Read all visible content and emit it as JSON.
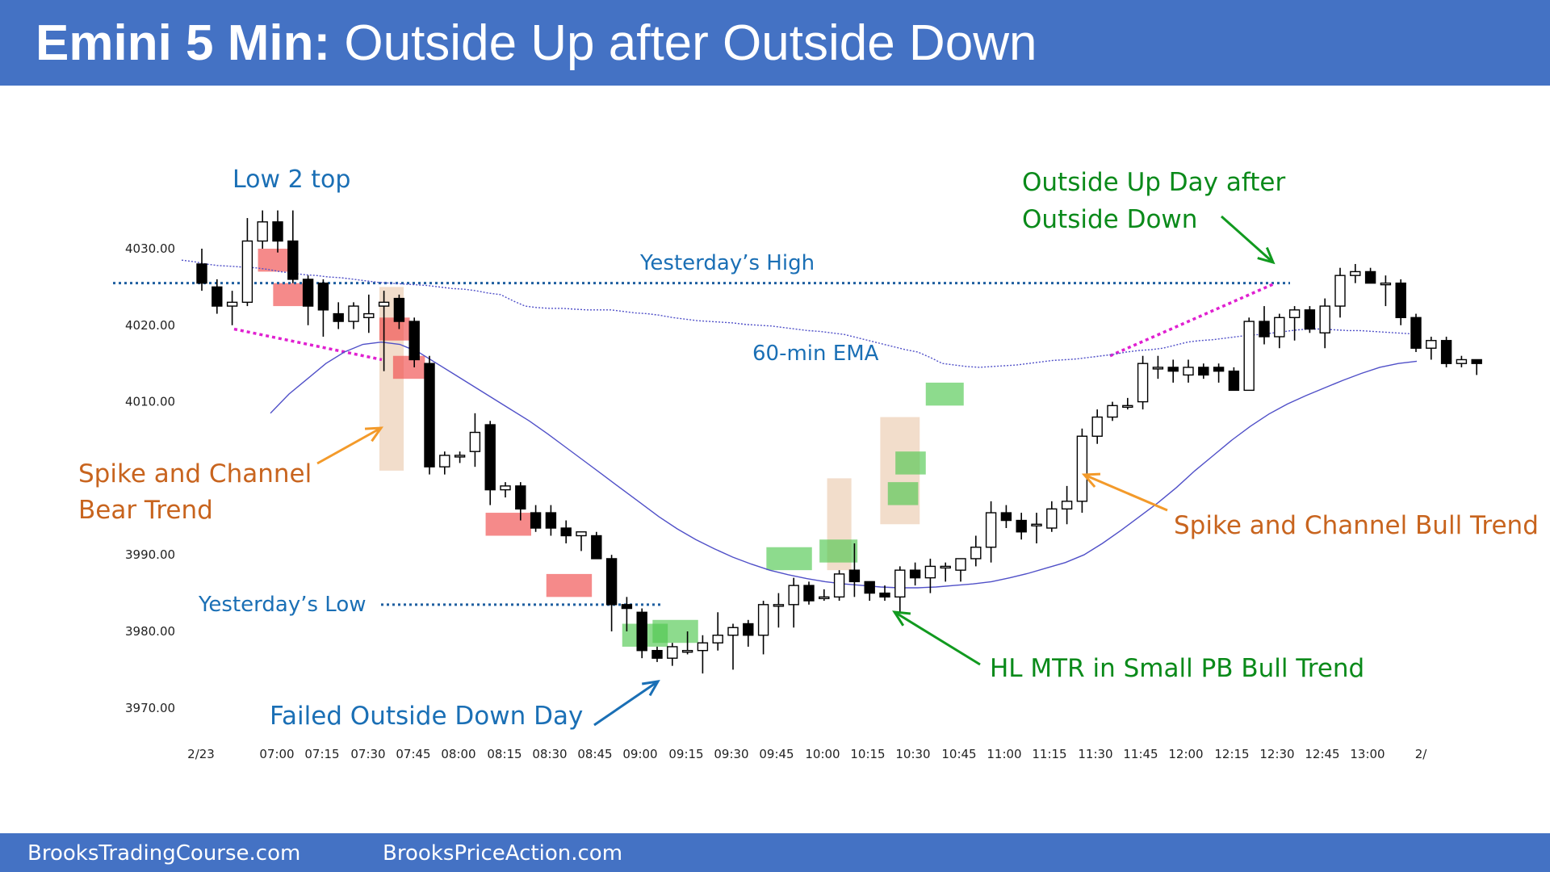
{
  "header": {
    "title_bold": "Emini 5 Min:",
    "title_rest": "Outside Up after Outside Down"
  },
  "footer": {
    "left": "BrooksTradingCourse.com",
    "right": "BrooksPriceAction.com"
  },
  "colors": {
    "header_bg": "#4472c4",
    "blue_text": "#1a6fb5",
    "green_text": "#0a8a1a",
    "orange_text": "#c8641e",
    "magenta": "#e020d0",
    "ema": "#5050c8",
    "bear_box": "#f04c4c",
    "bull_box": "#50c850",
    "tan_box": "#e2b48c"
  },
  "chart_data": {
    "type": "candlestick",
    "title": "",
    "y_ticks": [
      "4030.00",
      "4020.00",
      "4010.00",
      "3990.00",
      "3980.00",
      "3970.00"
    ],
    "ylim": [
      3965,
      4035
    ],
    "x_ticks": [
      "2/23",
      "07:00",
      "07:15",
      "07:30",
      "07:45",
      "08:00",
      "08:15",
      "08:30",
      "08:45",
      "09:00",
      "09:15",
      "09:30",
      "09:45",
      "10:00",
      "10:15",
      "10:30",
      "10:45",
      "11:00",
      "11:15",
      "11:30",
      "11:45",
      "12:00",
      "12:15",
      "12:30",
      "12:45",
      "13:00",
      "2/"
    ],
    "candles": [
      {
        "o": 4028.0,
        "h": 4030.0,
        "l": 4024.5,
        "c": 4025.5
      },
      {
        "o": 4025.0,
        "h": 4026.0,
        "l": 4021.5,
        "c": 4022.5
      },
      {
        "o": 4022.5,
        "h": 4024.5,
        "l": 4020.0,
        "c": 4023.0
      },
      {
        "o": 4023.0,
        "h": 4034.0,
        "l": 4022.5,
        "c": 4031.0
      },
      {
        "o": 4031.0,
        "h": 4035.0,
        "l": 4030.0,
        "c": 4033.5
      },
      {
        "o": 4033.5,
        "h": 4035.0,
        "l": 4029.5,
        "c": 4031.0
      },
      {
        "o": 4031.0,
        "h": 4035.0,
        "l": 4025.5,
        "c": 4026.0
      },
      {
        "o": 4026.0,
        "h": 4026.5,
        "l": 4020.0,
        "c": 4022.5
      },
      {
        "o": 4025.5,
        "h": 4026.0,
        "l": 4018.5,
        "c": 4022.0
      },
      {
        "o": 4021.5,
        "h": 4023.0,
        "l": 4019.5,
        "c": 4020.5
      },
      {
        "o": 4020.5,
        "h": 4023.0,
        "l": 4019.5,
        "c": 4022.5
      },
      {
        "o": 4021.0,
        "h": 4024.0,
        "l": 4019.0,
        "c": 4021.5
      },
      {
        "o": 4022.5,
        "h": 4024.5,
        "l": 4014.0,
        "c": 4023.0
      },
      {
        "o": 4023.5,
        "h": 4024.0,
        "l": 4019.5,
        "c": 4020.5
      },
      {
        "o": 4020.5,
        "h": 4021.0,
        "l": 4014.5,
        "c": 4015.5
      },
      {
        "o": 4015.0,
        "h": 4016.0,
        "l": 4000.5,
        "c": 4001.5
      },
      {
        "o": 4001.5,
        "h": 4003.5,
        "l": 4000.5,
        "c": 4003.0
      },
      {
        "o": 4003.0,
        "h": 4003.5,
        "l": 4002.0,
        "c": 4003.0
      },
      {
        "o": 4003.5,
        "h": 4008.5,
        "l": 4001.5,
        "c": 4006.0
      },
      {
        "o": 4007.0,
        "h": 4007.5,
        "l": 3996.5,
        "c": 3998.5
      },
      {
        "o": 3998.5,
        "h": 3999.5,
        "l": 3997.5,
        "c": 3999.0
      },
      {
        "o": 3999.0,
        "h": 3999.5,
        "l": 3994.5,
        "c": 3996.0
      },
      {
        "o": 3995.5,
        "h": 3996.5,
        "l": 3993.0,
        "c": 3993.5
      },
      {
        "o": 3995.5,
        "h": 3996.5,
        "l": 3992.5,
        "c": 3993.5
      },
      {
        "o": 3993.5,
        "h": 3994.5,
        "l": 3991.5,
        "c": 3992.5
      },
      {
        "o": 3992.5,
        "h": 3993.0,
        "l": 3990.5,
        "c": 3993.0
      },
      {
        "o": 3992.5,
        "h": 3993.0,
        "l": 3989.5,
        "c": 3989.5
      },
      {
        "o": 3989.5,
        "h": 3990.0,
        "l": 3980.0,
        "c": 3983.5
      },
      {
        "o": 3983.5,
        "h": 3984.5,
        "l": 3980.0,
        "c": 3983.0
      },
      {
        "o": 3982.5,
        "h": 3983.0,
        "l": 3976.5,
        "c": 3977.5
      },
      {
        "o": 3977.5,
        "h": 3978.0,
        "l": 3976.0,
        "c": 3976.5
      },
      {
        "o": 3976.5,
        "h": 3978.5,
        "l": 3975.5,
        "c": 3978.0
      },
      {
        "o": 3977.5,
        "h": 3980.0,
        "l": 3977.0,
        "c": 3977.5
      },
      {
        "o": 3977.5,
        "h": 3979.5,
        "l": 3974.5,
        "c": 3978.5
      },
      {
        "o": 3978.5,
        "h": 3982.5,
        "l": 3977.5,
        "c": 3979.5
      },
      {
        "o": 3979.5,
        "h": 3981.0,
        "l": 3975.0,
        "c": 3980.5
      },
      {
        "o": 3981.0,
        "h": 3981.5,
        "l": 3978.0,
        "c": 3979.5
      },
      {
        "o": 3979.5,
        "h": 3984.0,
        "l": 3977.0,
        "c": 3983.5
      },
      {
        "o": 3983.5,
        "h": 3985.0,
        "l": 3980.5,
        "c": 3983.5
      },
      {
        "o": 3983.5,
        "h": 3987.0,
        "l": 3980.5,
        "c": 3986.0
      },
      {
        "o": 3986.0,
        "h": 3986.5,
        "l": 3983.5,
        "c": 3984.0
      },
      {
        "o": 3984.5,
        "h": 3985.5,
        "l": 3984.0,
        "c": 3984.5
      },
      {
        "o": 3984.5,
        "h": 3988.0,
        "l": 3984.0,
        "c": 3987.5
      },
      {
        "o": 3988.0,
        "h": 3991.5,
        "l": 3984.5,
        "c": 3986.5
      },
      {
        "o": 3986.5,
        "h": 3986.5,
        "l": 3984.0,
        "c": 3985.0
      },
      {
        "o": 3985.0,
        "h": 3986.0,
        "l": 3984.0,
        "c": 3984.5
      },
      {
        "o": 3984.5,
        "h": 3988.5,
        "l": 3982.5,
        "c": 3988.0
      },
      {
        "o": 3988.0,
        "h": 3989.0,
        "l": 3986.0,
        "c": 3987.0
      },
      {
        "o": 3987.0,
        "h": 3989.5,
        "l": 3985.0,
        "c": 3988.5
      },
      {
        "o": 3988.5,
        "h": 3989.0,
        "l": 3986.5,
        "c": 3988.5
      },
      {
        "o": 3988.0,
        "h": 3989.5,
        "l": 3986.5,
        "c": 3989.5
      },
      {
        "o": 3989.5,
        "h": 3992.5,
        "l": 3988.5,
        "c": 3991.0
      },
      {
        "o": 3991.0,
        "h": 3997.0,
        "l": 3989.0,
        "c": 3995.5
      },
      {
        "o": 3995.5,
        "h": 3996.5,
        "l": 3993.5,
        "c": 3994.5
      },
      {
        "o": 3994.5,
        "h": 3995.5,
        "l": 3992.0,
        "c": 3993.0
      },
      {
        "o": 3994.0,
        "h": 3995.5,
        "l": 3991.5,
        "c": 3994.0
      },
      {
        "o": 3993.5,
        "h": 3997.0,
        "l": 3993.0,
        "c": 3996.0
      },
      {
        "o": 3996.0,
        "h": 3999.0,
        "l": 3994.0,
        "c": 3997.0
      },
      {
        "o": 3997.0,
        "h": 4006.5,
        "l": 3995.5,
        "c": 4005.5
      },
      {
        "o": 4005.5,
        "h": 4009.0,
        "l": 4004.5,
        "c": 4008.0
      },
      {
        "o": 4008.0,
        "h": 4010.0,
        "l": 4007.5,
        "c": 4009.5
      },
      {
        "o": 4009.5,
        "h": 4010.5,
        "l": 4009.0,
        "c": 4009.5
      },
      {
        "o": 4010.0,
        "h": 4016.0,
        "l": 4009.0,
        "c": 4015.0
      },
      {
        "o": 4014.5,
        "h": 4016.0,
        "l": 4013.0,
        "c": 4014.5
      },
      {
        "o": 4014.5,
        "h": 4015.5,
        "l": 4012.5,
        "c": 4014.0
      },
      {
        "o": 4013.5,
        "h": 4015.5,
        "l": 4012.5,
        "c": 4014.5
      },
      {
        "o": 4014.5,
        "h": 4015.0,
        "l": 4013.0,
        "c": 4013.5
      },
      {
        "o": 4014.5,
        "h": 4015.0,
        "l": 4012.5,
        "c": 4014.0
      },
      {
        "o": 4014.0,
        "h": 4014.5,
        "l": 4011.5,
        "c": 4011.5
      },
      {
        "o": 4011.5,
        "h": 4021.0,
        "l": 4011.5,
        "c": 4020.5
      },
      {
        "o": 4020.5,
        "h": 4022.5,
        "l": 4017.5,
        "c": 4018.5
      },
      {
        "o": 4018.5,
        "h": 4021.5,
        "l": 4017.0,
        "c": 4021.0
      },
      {
        "o": 4021.0,
        "h": 4022.5,
        "l": 4018.0,
        "c": 4022.0
      },
      {
        "o": 4022.0,
        "h": 4022.5,
        "l": 4019.0,
        "c": 4019.5
      },
      {
        "o": 4019.0,
        "h": 4023.5,
        "l": 4017.0,
        "c": 4022.5
      },
      {
        "o": 4022.5,
        "h": 4027.5,
        "l": 4021.0,
        "c": 4026.5
      },
      {
        "o": 4026.5,
        "h": 4028.0,
        "l": 4025.5,
        "c": 4027.0
      },
      {
        "o": 4027.0,
        "h": 4027.5,
        "l": 4025.5,
        "c": 4025.5
      },
      {
        "o": 4025.5,
        "h": 4026.5,
        "l": 4022.5,
        "c": 4025.5
      },
      {
        "o": 4025.5,
        "h": 4026.0,
        "l": 4020.0,
        "c": 4021.0
      },
      {
        "o": 4021.0,
        "h": 4021.5,
        "l": 4016.5,
        "c": 4017.0
      },
      {
        "o": 4017.0,
        "h": 4018.5,
        "l": 4015.5,
        "c": 4018.0
      },
      {
        "o": 4018.0,
        "h": 4018.5,
        "l": 4014.5,
        "c": 4015.0
      },
      {
        "o": 4015.0,
        "h": 4016.0,
        "l": 4014.5,
        "c": 4015.5
      },
      {
        "o": 4015.5,
        "h": 4015.5,
        "l": 4013.5,
        "c": 4015.0
      }
    ],
    "ema_60min": [
      4028.5,
      4028.3,
      4028.0,
      4027.8,
      4027.7,
      4027.6,
      4027.5,
      4027.3,
      4027.0,
      4026.8,
      4026.6,
      4026.5,
      4026.3,
      4026.2,
      4026.0,
      4025.8,
      4025.6,
      4025.5,
      4025.4,
      4025.3,
      4025.2,
      4025.0,
      4024.8,
      4024.7,
      4024.5,
      4024.2,
      4024.0,
      4023.2,
      4022.5,
      4022.3,
      4022.2,
      4022.2,
      4022.1,
      4022.0,
      4022.0,
      4022.0,
      4021.8,
      4021.6,
      4021.5,
      4021.3,
      4021.0,
      4020.8,
      4020.6,
      4020.5,
      4020.4,
      4020.3,
      4020.1,
      4020.0,
      4019.9,
      4019.7,
      4019.5,
      4019.3,
      4019.2,
      4019.0,
      4018.8,
      4018.4,
      4018.0,
      4017.6,
      4017.2,
      4016.8,
      4016.5,
      4015.8,
      4015.0,
      4014.8,
      4014.6,
      4014.5,
      4014.6,
      4014.7,
      4014.8,
      4015.0,
      4015.2,
      4015.4,
      4015.5,
      4015.6,
      4015.8,
      4016.0,
      4016.2,
      4016.5,
      4016.7,
      4016.8,
      4017.0,
      4017.4,
      4017.8,
      4018.0,
      4018.1,
      4018.3,
      4018.5,
      4018.7,
      4018.8,
      4019.0,
      4019.2,
      4019.4,
      4019.5,
      4019.5,
      4019.4,
      4019.3,
      4019.3,
      4019.2,
      4019.1,
      4019.0,
      4018.9,
      4018.8
    ],
    "ema_5min": [
      4008.5,
      4011.0,
      4013.0,
      4015.0,
      4016.5,
      4017.5,
      4017.8,
      4017.5,
      4016.5,
      4015.0,
      4013.5,
      4012.0,
      4010.5,
      4009.0,
      4007.5,
      4005.8,
      4004.0,
      4002.2,
      4000.4,
      3998.6,
      3996.8,
      3995.0,
      3993.4,
      3992.0,
      3990.8,
      3989.7,
      3988.8,
      3988.0,
      3987.4,
      3986.9,
      3986.5,
      3986.2,
      3986.0,
      3985.8,
      3985.7,
      3985.7,
      3985.8,
      3986.0,
      3986.2,
      3986.5,
      3987.0,
      3987.6,
      3988.3,
      3989.0,
      3990.0,
      3991.5,
      3993.2,
      3995.0,
      3996.8,
      3998.8,
      4001.0,
      4003.0,
      4005.0,
      4006.8,
      4008.4,
      4009.7,
      4010.8,
      4011.8,
      4012.8,
      4013.7,
      4014.5,
      4015.0,
      4015.3
    ],
    "annotations": {
      "low2_top": "Low 2 top",
      "yesterdays_high": "Yesterday’s High",
      "ema_label": "60-min EMA",
      "yesterdays_low": "Yesterday’s Low",
      "bear_trend_line1": "Spike and Channel",
      "bear_trend_line2": "Bear Trend",
      "failed_outside": "Failed Outside Down Day",
      "hl_mtr": "HL MTR in Small PB Bull Trend",
      "bull_trend": "Spike and Channel Bull Trend",
      "outside_up_line1": "Outside Up Day after",
      "outside_up_line2": "Outside Down"
    },
    "yesterdays_high": 4025.5,
    "yesterdays_low": 3983.5
  }
}
